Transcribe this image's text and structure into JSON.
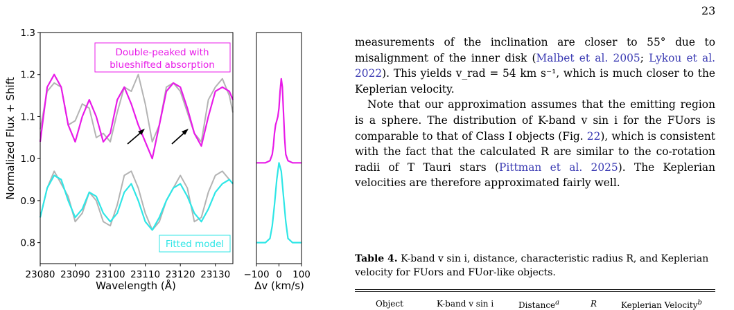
{
  "page_number": "23",
  "figure": {
    "ylabel": "Normalized Flux + Shift",
    "xlabel_left": "Wavelength (Å)",
    "xlabel_right": "Δv (km/s)",
    "legend_top_line1": "Double-peaked with",
    "legend_top_line2": "blueshifted absorption",
    "legend_bottom": "Fitted model",
    "colors": {
      "observed": "#b3b3b3",
      "double_peaked": "#e81be8",
      "fitted": "#2fe6e6",
      "arrow": "#000000"
    },
    "chart_data": [
      {
        "type": "line",
        "xlim": [
          23080,
          23135
        ],
        "ylim": [
          0.75,
          1.3
        ],
        "xticks": [
          23080,
          23090,
          23100,
          23110,
          23120,
          23130
        ],
        "yticks": [
          0.8,
          0.9,
          1.0,
          1.1,
          1.2,
          1.3
        ],
        "series": [
          {
            "role": "observed",
            "color": "#b3b3b3",
            "x": [
              23080,
              23082,
              23084,
              23086,
              23088,
              23090,
              23092,
              23094,
              23096,
              23098,
              23100,
              23102,
              23104,
              23106,
              23108,
              23110,
              23112,
              23114,
              23116,
              23118,
              23120,
              23122,
              23124,
              23126,
              23128,
              23130,
              23132,
              23134,
              23135
            ],
            "y": [
              1.07,
              1.16,
              1.18,
              1.17,
              1.08,
              1.09,
              1.13,
              1.12,
              1.05,
              1.06,
              1.04,
              1.11,
              1.17,
              1.16,
              1.2,
              1.13,
              1.04,
              1.08,
              1.17,
              1.18,
              1.16,
              1.11,
              1.06,
              1.04,
              1.14,
              1.17,
              1.19,
              1.15,
              1.11
            ]
          },
          {
            "role": "double_peaked",
            "color": "#e81be8",
            "x": [
              23080,
              23082,
              23084,
              23086,
              23088,
              23090,
              23092,
              23094,
              23096,
              23098,
              23100,
              23102,
              23104,
              23106,
              23108,
              23110,
              23112,
              23114,
              23116,
              23118,
              23120,
              23122,
              23124,
              23126,
              23128,
              23130,
              23132,
              23134,
              23135
            ],
            "y": [
              1.04,
              1.17,
              1.2,
              1.17,
              1.08,
              1.04,
              1.1,
              1.14,
              1.1,
              1.04,
              1.06,
              1.14,
              1.17,
              1.13,
              1.08,
              1.04,
              1.0,
              1.08,
              1.16,
              1.18,
              1.17,
              1.12,
              1.06,
              1.03,
              1.1,
              1.16,
              1.17,
              1.16,
              1.14
            ]
          },
          {
            "role": "observed",
            "color": "#b3b3b3",
            "x": [
              23080,
              23082,
              23084,
              23086,
              23088,
              23090,
              23092,
              23094,
              23096,
              23098,
              23100,
              23102,
              23104,
              23106,
              23108,
              23110,
              23112,
              23114,
              23116,
              23118,
              23120,
              23122,
              23124,
              23126,
              23128,
              23130,
              23132,
              23134,
              23135
            ],
            "y": [
              0.86,
              0.93,
              0.97,
              0.94,
              0.91,
              0.85,
              0.87,
              0.92,
              0.9,
              0.85,
              0.84,
              0.89,
              0.96,
              0.97,
              0.93,
              0.87,
              0.83,
              0.85,
              0.9,
              0.93,
              0.96,
              0.93,
              0.85,
              0.86,
              0.92,
              0.96,
              0.97,
              0.95,
              0.94
            ]
          },
          {
            "role": "fitted",
            "color": "#2fe6e6",
            "x": [
              23080,
              23082,
              23084,
              23086,
              23088,
              23090,
              23092,
              23094,
              23096,
              23098,
              23100,
              23102,
              23104,
              23106,
              23108,
              23110,
              23112,
              23114,
              23116,
              23118,
              23120,
              23122,
              23124,
              23126,
              23128,
              23130,
              23132,
              23134,
              23135
            ],
            "y": [
              0.86,
              0.93,
              0.96,
              0.95,
              0.9,
              0.86,
              0.88,
              0.92,
              0.91,
              0.87,
              0.85,
              0.87,
              0.92,
              0.94,
              0.9,
              0.85,
              0.83,
              0.86,
              0.9,
              0.93,
              0.94,
              0.91,
              0.87,
              0.85,
              0.88,
              0.92,
              0.94,
              0.95,
              0.94
            ]
          }
        ]
      },
      {
        "type": "line",
        "xlim": [
          -100,
          100
        ],
        "ylim": [
          0.75,
          1.3
        ],
        "xticks": [
          -100,
          0,
          100
        ],
        "series": [
          {
            "role": "double_peaked",
            "color": "#e81be8",
            "x": [
              -100,
              -60,
              -40,
              -30,
              -25,
              -20,
              -15,
              -10,
              -5,
              0,
              5,
              10,
              15,
              20,
              25,
              30,
              40,
              60,
              100
            ],
            "y": [
              0.99,
              0.99,
              0.995,
              1.01,
              1.03,
              1.06,
              1.08,
              1.09,
              1.1,
              1.12,
              1.16,
              1.19,
              1.17,
              1.11,
              1.05,
              1.01,
              0.995,
              0.99,
              0.99
            ]
          },
          {
            "role": "fitted",
            "color": "#2fe6e6",
            "x": [
              -100,
              -60,
              -40,
              -30,
              -20,
              -10,
              0,
              10,
              20,
              30,
              40,
              60,
              100
            ],
            "y": [
              0.8,
              0.8,
              0.81,
              0.84,
              0.89,
              0.95,
              0.99,
              0.97,
              0.91,
              0.85,
              0.81,
              0.8,
              0.8
            ]
          }
        ]
      }
    ]
  },
  "body": {
    "p1_a": "measurements of the inclination are closer to 55° due to misalignment of the inner disk (",
    "cite1": "Malbet et al. 2005",
    "p1_b": "; ",
    "cite2": "Lykou et al. 2022",
    "p1_c": "). This yields v_rad = 54 km s⁻¹, which is much closer to the Keplerian velocity.",
    "p2_a": "Note that our approximation assumes that the emitting region is a sphere. The distribution of K-band v sin i for the FUors is comparable to that of Class I objects (Fig. ",
    "cite3": "22",
    "p2_b": "), which is consistent with the fact that the calculated R are similar to the co-rotation radii of T Tauri stars (",
    "cite4": "Pittman et al. 2025",
    "p2_c": "). The Keplerian velocities are therefore approximated fairly well."
  },
  "table": {
    "label": "Table 4.",
    "caption": " K-band v sin i, distance, characteristic radius R, and Keplerian velocity for FUors and FUor-like objects.",
    "columns": [
      "Object",
      "K-band v sin i",
      "Distance",
      "R",
      "Keplerian Velocity"
    ],
    "column_superscripts": {
      "Distance": "a",
      "Keplerian Velocity": "b"
    }
  }
}
